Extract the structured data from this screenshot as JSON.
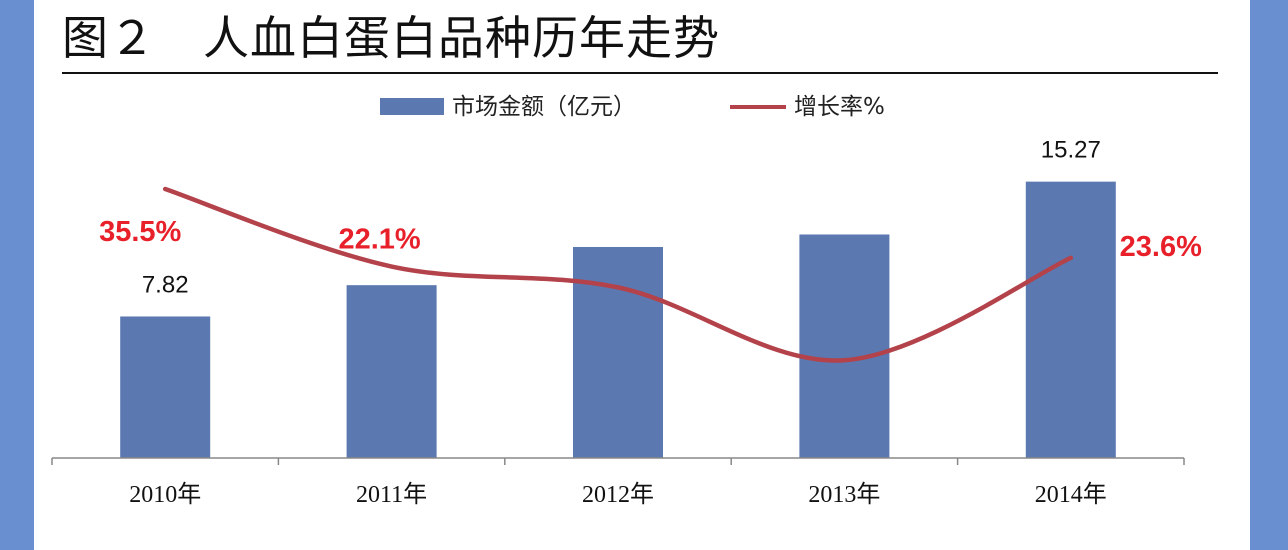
{
  "title": "图２　人血白蛋白品种历年走势",
  "colors": {
    "bar": "#5b78b0",
    "line": "#b3424a",
    "rate_label": "#e8202a",
    "side_bar": "#6a8fd0"
  },
  "chart_data": {
    "type": "bar",
    "categories": [
      "2010年",
      "2011年",
      "2012年",
      "2013年",
      "2014年"
    ],
    "series": [
      {
        "name": "市场金额（亿元）",
        "type": "bar",
        "axis": "left",
        "values": [
          7.82,
          9.55,
          11.66,
          12.35,
          15.27
        ],
        "labels": [
          "7.82",
          "",
          "",
          "",
          "15.27"
        ]
      },
      {
        "name": "增长率%",
        "type": "line",
        "axis": "right",
        "values": [
          35.5,
          22.1,
          18.5,
          5.9,
          23.6
        ],
        "labels": [
          "35.5%",
          "22.1%",
          "",
          "",
          "23.6%"
        ]
      }
    ],
    "ylim": [
      0,
      16.3
    ],
    "y2lim": [
      -11,
      40
    ],
    "legend": "top",
    "grid": false
  }
}
